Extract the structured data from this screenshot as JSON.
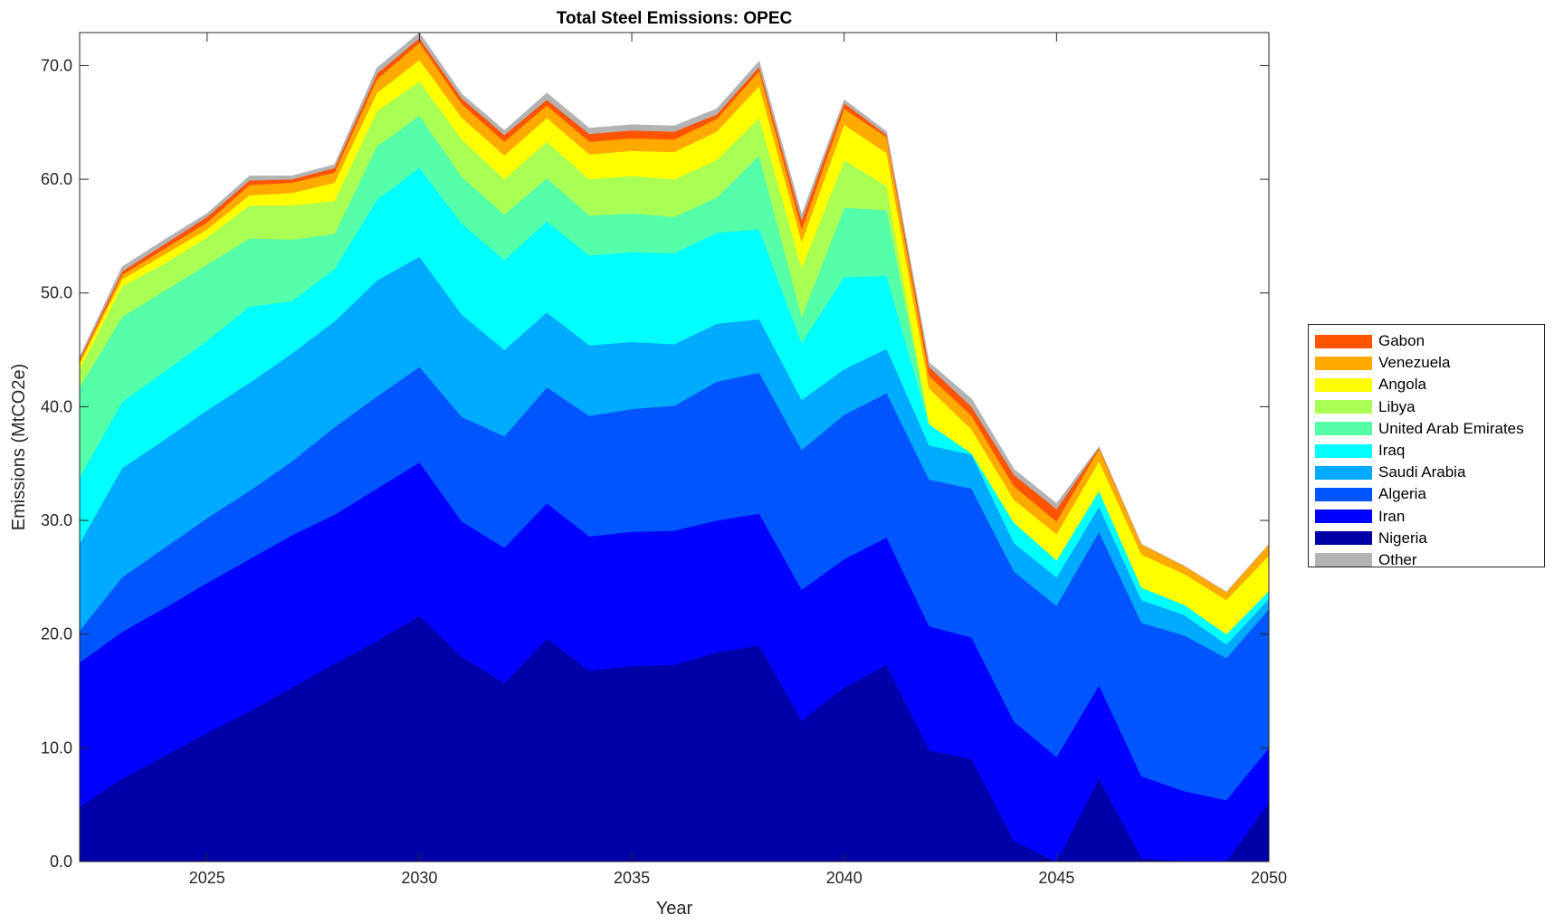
{
  "chart_data": {
    "type": "area",
    "stacked": true,
    "title": "Total Steel Emissions: OPEC",
    "xlabel": "Year",
    "ylabel": "Emissions (MtCO2e)",
    "xlim": [
      2022,
      2050
    ],
    "ylim": [
      0,
      72.9
    ],
    "xticks": [
      2025,
      2030,
      2035,
      2040,
      2045,
      2050
    ],
    "yticks": [
      0,
      10,
      20,
      30,
      40,
      50,
      60,
      70
    ],
    "ytick_labels": [
      "0.0",
      "10.0",
      "20.0",
      "30.0",
      "40.0",
      "50.0",
      "60.0",
      "70.0"
    ],
    "legend_position": "right-outside",
    "grid": false,
    "x": [
      2022,
      2023,
      2024,
      2025,
      2026,
      2027,
      2028,
      2029,
      2030,
      2031,
      2032,
      2033,
      2034,
      2035,
      2036,
      2037,
      2038,
      2039,
      2040,
      2041,
      2042,
      2043,
      2044,
      2045,
      2046,
      2047,
      2048,
      2049,
      2050
    ],
    "series": [
      {
        "name": "Nigeria",
        "color": "#0000a8",
        "values": [
          4.8,
          7.3,
          9.3,
          11.3,
          13.2,
          15.3,
          17.4,
          19.4,
          21.6,
          18.0,
          15.7,
          19.6,
          16.8,
          17.2,
          17.3,
          18.4,
          19.0,
          12.4,
          15.3,
          17.3,
          9.8,
          9.0,
          1.8,
          0,
          7.3,
          0.3,
          0,
          0,
          5.2
        ]
      },
      {
        "name": "Iran",
        "color": "#0000ff",
        "values": [
          12.7,
          12.9,
          13.0,
          13.2,
          13.4,
          13.4,
          13.1,
          13.4,
          13.5,
          11.9,
          11.9,
          11.9,
          11.8,
          11.8,
          11.8,
          11.6,
          11.6,
          11.5,
          11.3,
          11.2,
          10.9,
          10.7,
          10.5,
          9.2,
          8.2,
          7.2,
          6.2,
          5.4,
          4.8
        ]
      },
      {
        "name": "Algeria",
        "color": "#0055ff",
        "values": [
          2.8,
          4.8,
          5.3,
          5.7,
          6.0,
          6.5,
          7.7,
          8.1,
          8.4,
          9.2,
          9.8,
          10.2,
          10.6,
          10.8,
          11.0,
          12.2,
          12.4,
          12.3,
          12.7,
          12.7,
          12.9,
          13.1,
          13.2,
          13.3,
          13.5,
          13.5,
          13.7,
          12.5,
          12.2
        ]
      },
      {
        "name": "Saudi Arabia",
        "color": "#00aaff",
        "values": [
          7.7,
          9.6,
          9.5,
          9.5,
          9.5,
          9.5,
          9.3,
          10.2,
          9.7,
          9.0,
          7.6,
          6.6,
          6.2,
          5.9,
          5.4,
          5.1,
          4.7,
          4.4,
          4.0,
          3.9,
          3.0,
          3.0,
          2.5,
          2.5,
          2.2,
          2.0,
          1.8,
          1.2,
          0.9
        ]
      },
      {
        "name": "Iraq",
        "color": "#00ffff",
        "values": [
          5.8,
          5.8,
          6.0,
          6.1,
          6.7,
          4.6,
          4.6,
          7.1,
          7.8,
          8.0,
          7.9,
          8.0,
          7.9,
          7.9,
          8.0,
          8.0,
          7.9,
          5.0,
          8.1,
          6.4,
          1.8,
          0.1,
          1.8,
          1.5,
          1.4,
          1.1,
          0.9,
          0.9,
          0.7
        ]
      },
      {
        "name": "United Arab Emirates",
        "color": "#55ffaa",
        "values": [
          7.9,
          7.5,
          7.1,
          6.7,
          6.0,
          5.4,
          3.1,
          4.7,
          4.6,
          4.1,
          4.0,
          3.8,
          3.5,
          3.4,
          3.2,
          3.1,
          6.5,
          2.3,
          6.1,
          5.8,
          0.1,
          0,
          0,
          0,
          0,
          0,
          0,
          0,
          0
        ]
      },
      {
        "name": "Libya",
        "color": "#aaff55",
        "values": [
          1.6,
          2.7,
          2.4,
          2.4,
          2.9,
          3.0,
          2.9,
          3.1,
          3.0,
          3.3,
          3.1,
          3.2,
          3.2,
          3.3,
          3.3,
          3.3,
          3.3,
          4.3,
          4.2,
          2.1,
          0,
          0,
          0,
          0,
          0,
          0,
          0,
          0,
          0
        ]
      },
      {
        "name": "Angola",
        "color": "#ffff00",
        "values": [
          0.5,
          0.6,
          0.8,
          0.7,
          0.9,
          1.1,
          1.6,
          1.6,
          1.9,
          1.9,
          2.1,
          2.1,
          2.2,
          2.2,
          2.4,
          2.5,
          2.8,
          2.3,
          3.1,
          2.9,
          3.1,
          2.1,
          2.0,
          2.3,
          2.6,
          2.9,
          2.7,
          3.0,
          3.1
        ]
      },
      {
        "name": "Venezuela",
        "color": "#ffaa00",
        "values": [
          0.2,
          0.4,
          0.5,
          0.6,
          0.9,
          0.9,
          0.9,
          1.2,
          1.5,
          1.2,
          1.2,
          1.1,
          1.1,
          1.1,
          1.1,
          1.1,
          1.3,
          1.1,
          1.4,
          1.4,
          1.1,
          1.2,
          1.2,
          1.1,
          1.1,
          0.9,
          0.7,
          0.7,
          1.0
        ]
      },
      {
        "name": "Gabon",
        "color": "#ff5500",
        "values": [
          0.2,
          0.3,
          0.4,
          0.5,
          0.4,
          0.3,
          0.4,
          0.5,
          0.4,
          0.5,
          0.6,
          0.5,
          0.7,
          0.7,
          0.7,
          0.4,
          0.4,
          0.8,
          0.5,
          0.2,
          0.8,
          0.8,
          1.0,
          1.1,
          0.1,
          0,
          0,
          0,
          0
        ]
      },
      {
        "name": "Other",
        "color": "#b3b3b3",
        "values": [
          0.2,
          0.4,
          0.4,
          0.3,
          0.4,
          0.3,
          0.3,
          0.5,
          0.5,
          0.4,
          0.4,
          0.6,
          0.5,
          0.5,
          0.5,
          0.5,
          0.5,
          0.5,
          0.3,
          0.3,
          0.4,
          0.7,
          0.5,
          0.5,
          0.1,
          0,
          0,
          0,
          0
        ]
      }
    ],
    "legend_order": [
      "Gabon",
      "Venezuela",
      "Angola",
      "Libya",
      "United Arab Emirates",
      "Iraq",
      "Saudi Arabia",
      "Algeria",
      "Iran",
      "Nigeria",
      "Other"
    ]
  }
}
